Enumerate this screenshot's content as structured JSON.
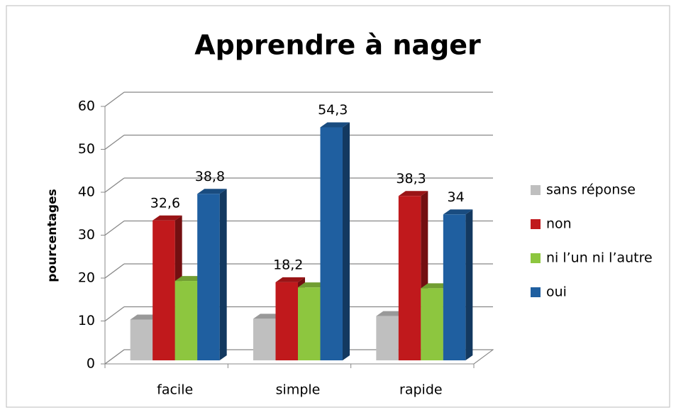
{
  "chart_data": {
    "type": "bar3d",
    "title": "Apprendre à nager",
    "y_label": "pourcentages",
    "categories": [
      "facile",
      "simple",
      "rapide"
    ],
    "series": [
      {
        "name": "sans réponse",
        "color": "#bfbfbf",
        "values": [
          9.5,
          9.7,
          10.3
        ]
      },
      {
        "name": "non",
        "color": "#c0191c",
        "values": [
          32.6,
          18.2,
          38.3
        ],
        "value_labels": [
          "32,6",
          "18,2",
          "38,3"
        ]
      },
      {
        "name": "ni l’un ni l’autre",
        "color": "#8dc63f",
        "values": [
          18.5,
          17,
          16.8
        ]
      },
      {
        "name": "oui",
        "color": "#1f5fa0",
        "values": [
          38.8,
          54.3,
          34
        ],
        "value_labels": [
          "38,8",
          "54,3",
          "34"
        ]
      }
    ],
    "ylim": [
      0,
      60
    ],
    "yticks": [
      0,
      10,
      20,
      30,
      40,
      50,
      60
    ],
    "grid": true,
    "legend": "right"
  }
}
